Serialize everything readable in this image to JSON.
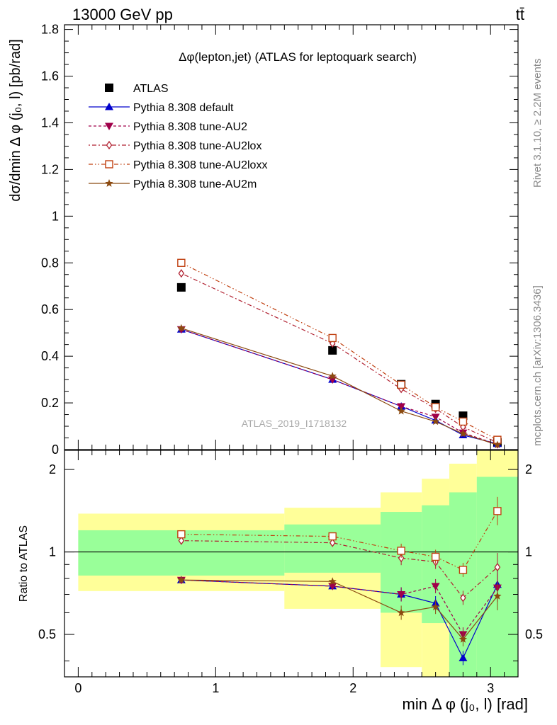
{
  "header": {
    "left": "13000 GeV pp",
    "right": "tt̄"
  },
  "side": {
    "rivet": "Rivet 3.1.10, ≥ 2.2M events",
    "mcplots": "mcplots.cern.ch [arXiv:1306.3436]"
  },
  "chart_data": [
    {
      "type": "scatter",
      "title": "Δφ(lepton,jet) (ATLAS for leptoquark search)",
      "ylabel": "dσ/dmin Δ φ (j₀, l) [pb/rad]",
      "xlabel": "",
      "watermark": "ATLAS_2019_I1718132",
      "xlim": [
        -0.1,
        3.2
      ],
      "ylim": [
        0,
        1.82
      ],
      "yticks": [
        0,
        0.2,
        0.4,
        0.6,
        0.8,
        1,
        1.2,
        1.4,
        1.6,
        1.8
      ],
      "ytick_labels": [
        "0",
        "0.2",
        "0.4",
        "0.6",
        "0.8",
        "1",
        "1.2",
        "1.4",
        "1.6",
        "1.8"
      ],
      "x": [
        0.75,
        1.85,
        2.35,
        2.6,
        2.8,
        3.05
      ],
      "series": [
        {
          "name": "ATLAS",
          "marker": "square",
          "color": "#000000",
          "values": [
            0.695,
            0.425,
            0.28,
            0.195,
            0.145,
            0.03
          ]
        },
        {
          "name": "Pythia 8.308 default",
          "marker": "triangle-up",
          "color": "#0000cc",
          "dash": "solid",
          "values": [
            0.515,
            0.3,
            0.185,
            0.125,
            0.062,
            0.025
          ]
        },
        {
          "name": "Pythia 8.308 tune-AU2",
          "marker": "triangle-down",
          "color": "#a0004a",
          "dash": "dash",
          "values": [
            0.515,
            0.3,
            0.185,
            0.14,
            0.072,
            0.022
          ]
        },
        {
          "name": "Pythia 8.308 tune-AU2lox",
          "marker": "diamond",
          "color": "#b02030",
          "dash": "dashdot",
          "values": [
            0.755,
            0.455,
            0.26,
            0.175,
            0.097,
            0.03
          ]
        },
        {
          "name": "Pythia 8.308 tune-AU2loxx",
          "marker": "open-square",
          "color": "#c04010",
          "dash": "dashdotdot",
          "values": [
            0.8,
            0.478,
            0.278,
            0.182,
            0.12,
            0.042
          ]
        },
        {
          "name": "Pythia 8.308 tune-AU2m",
          "marker": "star",
          "color": "#8b4a10",
          "dash": "solid",
          "values": [
            0.52,
            0.315,
            0.165,
            0.12,
            0.068,
            0.02
          ]
        }
      ]
    },
    {
      "type": "scatter",
      "title": "",
      "ylabel": "Ratio to ATLAS",
      "xlabel": "min Δ φ (j₀, l) [rad]",
      "xlim": [
        -0.1,
        3.2
      ],
      "ylim": [
        0.35,
        2.35
      ],
      "xticks": [
        0,
        1,
        2,
        3
      ],
      "xtick_labels": [
        "0",
        "1",
        "2",
        "3"
      ],
      "yticks": [
        0.5,
        1,
        2
      ],
      "ytick_labels": [
        "0.5",
        "1",
        "2"
      ],
      "bands": [
        {
          "x0": 0,
          "x1": 1.5,
          "yellow": [
            0.72,
            1.38
          ],
          "green": [
            0.82,
            1.2
          ]
        },
        {
          "x0": 1.5,
          "x1": 2.2,
          "yellow": [
            0.62,
            1.45
          ],
          "green": [
            0.84,
            1.26
          ]
        },
        {
          "x0": 2.2,
          "x1": 2.5,
          "yellow": [
            0.38,
            1.65
          ],
          "green": [
            0.6,
            1.4
          ]
        },
        {
          "x0": 2.5,
          "x1": 2.7,
          "yellow": [
            0.35,
            1.85
          ],
          "green": [
            0.55,
            1.48
          ]
        },
        {
          "x0": 2.7,
          "x1": 2.9,
          "yellow": [
            0.35,
            2.1
          ],
          "green": [
            0.35,
            1.65
          ]
        },
        {
          "x0": 2.9,
          "x1": 3.2,
          "yellow": [
            0.35,
            2.35
          ],
          "green": [
            0.35,
            1.88
          ]
        }
      ],
      "x": [
        0.75,
        1.85,
        2.35,
        2.6,
        2.8,
        3.05
      ],
      "series": [
        {
          "name": "Pythia 8.308 default",
          "values": [
            0.79,
            0.75,
            0.7,
            0.65,
            0.41,
            0.76
          ]
        },
        {
          "name": "Pythia 8.308 tune-AU2",
          "values": [
            0.79,
            0.75,
            0.7,
            0.75,
            0.5,
            0.74
          ]
        },
        {
          "name": "Pythia 8.308 tune-AU2lox",
          "values": [
            1.1,
            1.08,
            0.95,
            0.92,
            0.68,
            0.88
          ]
        },
        {
          "name": "Pythia 8.308 tune-AU2loxx",
          "values": [
            1.16,
            1.14,
            1.01,
            0.96,
            0.86,
            1.41
          ]
        },
        {
          "name": "Pythia 8.308 tune-AU2m",
          "values": [
            0.79,
            0.78,
            0.6,
            0.63,
            0.48,
            0.69
          ]
        }
      ]
    }
  ]
}
